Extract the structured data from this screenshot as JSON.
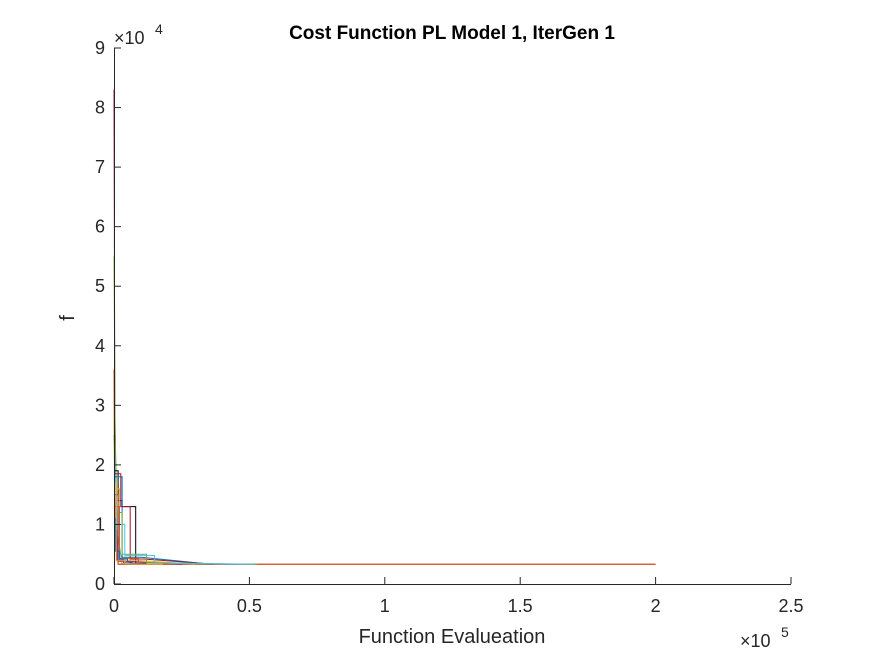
{
  "chart_data": {
    "type": "line",
    "title": "Cost Function PL Model 1, IterGen 1",
    "xlabel": "Function Evalueation",
    "ylabel": "f",
    "xlim": [
      0,
      250000
    ],
    "ylim": [
      0,
      90000
    ],
    "x_ticks": [
      0,
      50000,
      100000,
      150000,
      200000,
      250000
    ],
    "x_tick_labels": [
      "0",
      "0.5",
      "1",
      "1.5",
      "2",
      "2.5"
    ],
    "y_ticks": [
      0,
      10000,
      20000,
      30000,
      40000,
      50000,
      60000,
      70000,
      80000,
      90000
    ],
    "y_tick_labels": [
      "0",
      "1",
      "2",
      "3",
      "4",
      "5",
      "6",
      "7",
      "8",
      "9"
    ],
    "x_exponent": {
      "base": "×10",
      "power": "5"
    },
    "y_exponent": {
      "base": "×10",
      "power": "4"
    },
    "grid": false,
    "box": false,
    "series": [
      {
        "color": "#A2142F",
        "x": [
          0,
          300,
          800,
          1500,
          200000
        ],
        "y": [
          83000,
          30000,
          14000,
          3300,
          3300
        ]
      },
      {
        "color": "#77AC30",
        "x": [
          0,
          400,
          1200,
          3000,
          52000
        ],
        "y": [
          55000,
          26000,
          9000,
          3300,
          3300
        ]
      },
      {
        "color": "#4DBEEE",
        "x": [
          0,
          500,
          1500,
          4000,
          50000
        ],
        "y": [
          25000,
          18000,
          6000,
          3300,
          3300
        ]
      },
      {
        "color": "#D95319",
        "x": [
          0,
          200,
          600,
          1500,
          200000
        ],
        "y": [
          36000,
          17000,
          7000,
          3300,
          3300
        ]
      },
      {
        "color": "#000000",
        "x": [
          0,
          1500,
          1500,
          3000,
          3000,
          8000,
          8000,
          12000
        ],
        "y": [
          19000,
          19000,
          14000,
          14000,
          13000,
          13000,
          3500,
          3500
        ]
      },
      {
        "color": "#0072BD",
        "x": [
          0,
          3000,
          3000,
          10000,
          36000
        ],
        "y": [
          18000,
          18000,
          4500,
          4500,
          3300
        ]
      },
      {
        "color": "#EDB120",
        "x": [
          0,
          2000,
          2000,
          8000,
          30000
        ],
        "y": [
          16000,
          16000,
          4000,
          4000,
          3300
        ]
      },
      {
        "color": "#7E2F8E",
        "x": [
          0,
          1500,
          1500,
          6000,
          25000
        ],
        "y": [
          15000,
          15000,
          3800,
          3800,
          3300
        ]
      },
      {
        "color": "#A2142F",
        "x": [
          0,
          2500,
          2500,
          6000,
          6000,
          11000,
          37000
        ],
        "y": [
          18500,
          18500,
          13000,
          13000,
          4200,
          4200,
          3300
        ]
      },
      {
        "color": "#77AC30",
        "x": [
          0,
          3000,
          3000,
          12000,
          12000,
          53000
        ],
        "y": [
          12000,
          12000,
          5000,
          5000,
          3600,
          3300
        ]
      },
      {
        "color": "#4DBEEE",
        "x": [
          0,
          4000,
          4000,
          15000,
          15000,
          52000
        ],
        "y": [
          10000,
          10000,
          4800,
          4800,
          3500,
          3300
        ]
      },
      {
        "color": "#D95319",
        "x": [
          0,
          2000,
          2000,
          9000,
          9000,
          20000
        ],
        "y": [
          13000,
          13000,
          4300,
          4300,
          3400,
          3300
        ]
      },
      {
        "color": "#0072BD",
        "x": [
          0,
          500,
          500,
          2000,
          2000,
          5000,
          5000,
          9000
        ],
        "y": [
          11000,
          11000,
          5500,
          5500,
          4200,
          4200,
          3800,
          3300
        ]
      },
      {
        "color": "#7E2F8E",
        "x": [
          0,
          1000,
          1000,
          3500,
          3500,
          14000
        ],
        "y": [
          9000,
          9000,
          4000,
          4000,
          3600,
          3300
        ]
      },
      {
        "color": "#EDB120",
        "x": [
          0,
          800,
          800,
          4000,
          4000,
          18000
        ],
        "y": [
          17000,
          17000,
          3900,
          3900,
          3400,
          3300
        ]
      }
    ]
  }
}
